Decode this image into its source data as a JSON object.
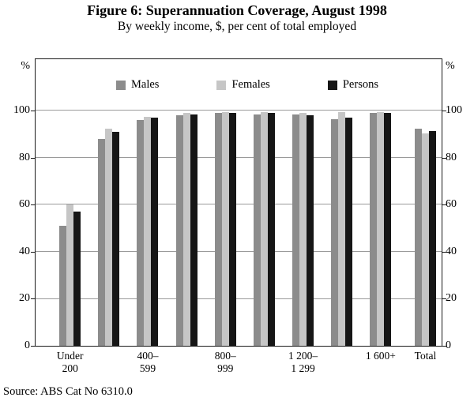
{
  "title": "Figure 6: Superannuation Coverage, August 1998",
  "subtitle": "By weekly income, $, per cent of total employed",
  "source": "Source: ABS Cat No 6310.0",
  "axis": {
    "unit": "%"
  },
  "chart_data": {
    "type": "bar",
    "title": "Figure 6: Superannuation Coverage, August 1998",
    "subtitle": "By weekly income, $, per cent of total employed",
    "categories": [
      "Under\n200",
      "",
      "400–\n599",
      "",
      "800–\n999",
      "",
      "1 200–\n1 299",
      "",
      "1 600+",
      "Total"
    ],
    "series": [
      {
        "name": "Males",
        "color": "#8c8c8c",
        "values": [
          51,
          88,
          96,
          98,
          99,
          98.5,
          98.5,
          96.5,
          99,
          92.5
        ]
      },
      {
        "name": "Females",
        "color": "#c6c6c6",
        "values": [
          60,
          92.5,
          97.5,
          99,
          99.5,
          99.5,
          99,
          99.5,
          99.5,
          90.5
        ]
      },
      {
        "name": "Persons",
        "color": "#161616",
        "values": [
          57,
          91,
          97,
          98.5,
          99,
          99,
          98,
          97,
          99,
          91.5
        ]
      }
    ],
    "ylabel": "%",
    "ylim": [
      0,
      122
    ],
    "yticks": [
      0,
      20,
      40,
      60,
      80,
      100
    ],
    "grid": true,
    "legend_position": "top-inside"
  }
}
